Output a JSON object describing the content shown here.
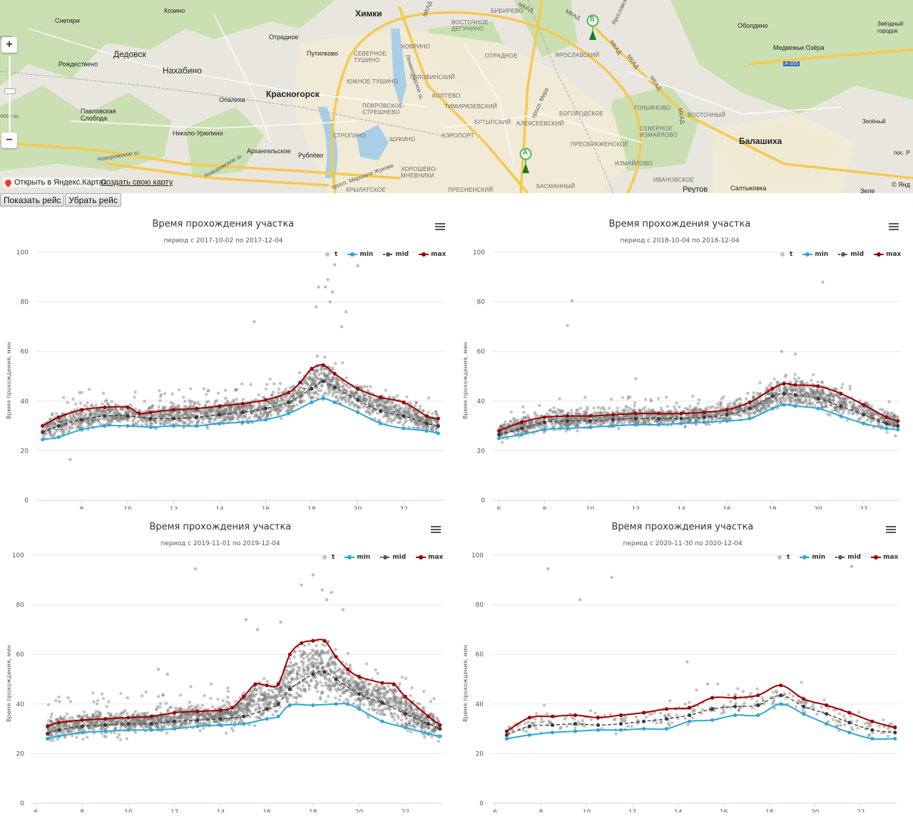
{
  "map": {
    "labels": [
      {
        "t": "Химки",
        "c": "big"
      },
      {
        "t": "Дедовск",
        "c": "city"
      },
      {
        "t": "Нахабино",
        "c": "city"
      },
      {
        "t": "Красногорск",
        "c": "big"
      },
      {
        "t": "Балашиха",
        "c": "big"
      },
      {
        "t": "Реутов",
        "c": "city"
      },
      {
        "t": "Снегири",
        "c": "city"
      },
      {
        "t": "Козино",
        "c": "city"
      },
      {
        "t": "Отрадное",
        "c": "city"
      },
      {
        "t": "Путилково",
        "c": "city"
      },
      {
        "t": "Рождествено",
        "c": "city"
      },
      {
        "t": "Опалиха",
        "c": "city"
      },
      {
        "t": "Павловская Слобода",
        "c": "city"
      },
      {
        "t": "Николо-Урюпино",
        "c": "city"
      },
      {
        "t": "Архангельское",
        "c": "city"
      },
      {
        "t": "Рублёво",
        "c": "city"
      },
      {
        "t": "Оболдино",
        "c": "city"
      },
      {
        "t": "Звёздный городок",
        "c": "city"
      },
      {
        "t": "Медвежьи Озёра",
        "c": "city"
      },
      {
        "t": "Зелёный",
        "c": "city"
      },
      {
        "t": "Салтыковка",
        "c": "city"
      },
      {
        "t": "пос. Р",
        "c": "city"
      },
      {
        "t": "Зеле",
        "c": "city"
      },
      {
        "t": "Бибирево",
        "c": "dist"
      },
      {
        "t": "Восточное Дегунино",
        "c": "dist"
      },
      {
        "t": "Ховрино",
        "c": "dist"
      },
      {
        "t": "Северное Тушино",
        "c": "dist"
      },
      {
        "t": "Южное Тушино",
        "c": "dist"
      },
      {
        "t": "Головинский",
        "c": "dist"
      },
      {
        "t": "Коптево",
        "c": "dist"
      },
      {
        "t": "Отрадное",
        "c": "dist"
      },
      {
        "t": "Ярославский",
        "c": "dist"
      },
      {
        "t": "Тимирязевский",
        "c": "dist"
      },
      {
        "t": "Бутырский",
        "c": "dist"
      },
      {
        "t": "Алексеевский",
        "c": "dist"
      },
      {
        "t": "Богородское",
        "c": "dist"
      },
      {
        "t": "Гольяново",
        "c": "dist"
      },
      {
        "t": "Восточный",
        "c": "dist"
      },
      {
        "t": "Покровское-Стрешнево",
        "c": "dist"
      },
      {
        "t": "Строгино",
        "c": "dist"
      },
      {
        "t": "Аэропорт",
        "c": "dist"
      },
      {
        "t": "Щукино",
        "c": "dist"
      },
      {
        "t": "Преображенское",
        "c": "dist"
      },
      {
        "t": "Северное Измайлово",
        "c": "dist"
      },
      {
        "t": "Измайлово",
        "c": "dist"
      },
      {
        "t": "Хорошёво-Мнёвники",
        "c": "dist"
      },
      {
        "t": "Крылатское",
        "c": "dist"
      },
      {
        "t": "Пресненский",
        "c": "dist"
      },
      {
        "t": "Басманный",
        "c": "dist"
      },
      {
        "t": "Ивановское",
        "c": "dist"
      },
      {
        "t": "МКАД",
        "c": "road"
      },
      {
        "t": "МКАД",
        "c": "road"
      },
      {
        "t": "МКАД",
        "c": "road"
      },
      {
        "t": "МКАД",
        "c": "road"
      },
      {
        "t": "МКАД",
        "c": "road"
      },
      {
        "t": "МКАД",
        "c": "road"
      },
      {
        "t": "МКАД",
        "c": "road"
      },
      {
        "t": "А-103",
        "c": "road"
      },
      {
        "t": "Новорижское ш.",
        "c": "road"
      },
      {
        "t": "Ленинградское ш.",
        "c": "road"
      },
      {
        "t": "просп. Мира",
        "c": "road"
      },
      {
        "t": "просп. Маршала Жукова",
        "c": "road"
      },
      {
        "t": "Ярославское",
        "c": "road"
      },
      {
        "t": "Новорижское ш.",
        "c": "road"
      },
      {
        "t": "ское",
        "c": "road"
      },
      {
        "t": "ское ш.",
        "c": "road"
      }
    ],
    "marker_a": "A",
    "marker_b": "B",
    "open_link": "Открыть в Яндекс.Картах",
    "create_link": "Создать свою карту",
    "copyright": "© Янд",
    "zoom_in": "+",
    "zoom_out": "−"
  },
  "buttons": {
    "show": "Показать рейс",
    "hide": "Убрать рейс"
  },
  "colors": {
    "min": "#2ea8d3",
    "mid": "#555555",
    "max": "#9b0000",
    "t": "#999999"
  },
  "chart_data": [
    {
      "type": "scatter",
      "title": "Время прохождения участка",
      "subtitle": "период с 2017-10-02 по 2017-12-04",
      "ylabel": "Время прохождения, мин",
      "ylim": [
        0,
        100
      ],
      "yticks": [
        0,
        20,
        40,
        60,
        80,
        100
      ],
      "xlim": [
        6,
        23.8
      ],
      "xticks": [
        8,
        10,
        12,
        14,
        16,
        18,
        20,
        22
      ],
      "legend": [
        "t",
        "min",
        "mid",
        "max"
      ],
      "series": [
        {
          "name": "min",
          "x": [
            6.3,
            7,
            8,
            9,
            10,
            11,
            12,
            13,
            14,
            15,
            16,
            17,
            18,
            18.5,
            19,
            20,
            21,
            22,
            23,
            23.5
          ],
          "values": [
            24.5,
            25.5,
            28.5,
            30,
            30,
            29.5,
            30,
            30,
            31,
            31.5,
            32.5,
            35,
            39.5,
            41,
            39.5,
            35.5,
            31,
            29,
            28,
            27
          ]
        },
        {
          "name": "max",
          "x": [
            6.3,
            7,
            8,
            9,
            10,
            10.5,
            11,
            12,
            13,
            14,
            15,
            16,
            17,
            17.5,
            18,
            18.5,
            19,
            20,
            21,
            22,
            23,
            23.5
          ],
          "values": [
            30,
            33.5,
            36.5,
            37.5,
            37.5,
            35,
            35.5,
            36.5,
            37,
            38,
            39,
            40.5,
            43.5,
            47.5,
            53,
            54.5,
            51,
            45,
            41.5,
            39.5,
            34,
            33
          ]
        },
        {
          "name": "mid",
          "x": [
            6.3,
            7,
            8,
            9,
            10,
            11,
            12,
            13,
            14,
            15,
            16,
            17,
            18,
            18.5,
            19,
            20,
            21,
            22,
            23,
            23.5
          ],
          "values": [
            27.5,
            30,
            32.5,
            34,
            34,
            33,
            33,
            33.5,
            34.5,
            35.5,
            37,
            39.5,
            45,
            48,
            45.5,
            40.5,
            36,
            34,
            31,
            30
          ]
        }
      ],
      "t_params": {
        "count": 1900,
        "spread": 4.2,
        "outliers": [
          [
            18.3,
            86
          ],
          [
            18.6,
            86
          ],
          [
            18.9,
            84
          ],
          [
            19,
            95
          ],
          [
            18.7,
            89
          ],
          [
            15.5,
            72
          ],
          [
            19.5,
            76
          ],
          [
            20,
            94.5
          ],
          [
            7.5,
            16.5
          ],
          [
            18.2,
            78
          ],
          [
            18.8,
            80
          ],
          [
            19.3,
            70
          ]
        ]
      }
    },
    {
      "type": "scatter",
      "title": "Время прохождения участка",
      "subtitle": "период с 2018-10-04 по 2018-12-04",
      "ylabel": "Время прохождения, мин",
      "ylim": [
        0,
        100
      ],
      "yticks": [
        0,
        20,
        40,
        60,
        80,
        100
      ],
      "xlim": [
        6,
        23.6
      ],
      "xticks": [
        6,
        8,
        10,
        12,
        14,
        16,
        18,
        20,
        22
      ],
      "legend": [
        "t",
        "min",
        "mid",
        "max"
      ],
      "series": [
        {
          "name": "min",
          "x": [
            6,
            7,
            8,
            9,
            10,
            11,
            12,
            13,
            14,
            15,
            16,
            17,
            18,
            18.5,
            19,
            20,
            21,
            22,
            23,
            23.5
          ],
          "values": [
            25,
            26.5,
            28.5,
            29,
            29.5,
            30,
            30.5,
            30.5,
            31,
            31.5,
            32,
            33,
            37,
            38.5,
            38,
            37,
            34,
            31,
            29,
            28.5
          ]
        },
        {
          "name": "max",
          "x": [
            6,
            7,
            8,
            9,
            10,
            11,
            12,
            13,
            14,
            15,
            16,
            17,
            18,
            18.5,
            19,
            20,
            21,
            22,
            23,
            23.5
          ],
          "values": [
            28,
            31.5,
            33.5,
            34,
            34,
            34.5,
            35,
            35,
            35,
            35.5,
            36.5,
            39.5,
            45,
            47,
            46.5,
            46,
            43,
            38.5,
            33.5,
            32
          ]
        },
        {
          "name": "mid",
          "x": [
            6,
            7,
            8,
            9,
            10,
            11,
            12,
            13,
            14,
            15,
            16,
            17,
            18,
            18.5,
            19,
            20,
            21,
            22,
            23,
            23.5
          ],
          "values": [
            26.5,
            29,
            31.5,
            32,
            32,
            32.5,
            33,
            33,
            33,
            33.5,
            34.5,
            37,
            42,
            43,
            42.5,
            41,
            38,
            34.5,
            31,
            30
          ]
        }
      ],
      "t_params": {
        "count": 1800,
        "spread": 3.4,
        "outliers": [
          [
            9.2,
            80.5
          ],
          [
            9.0,
            70.5
          ],
          [
            20.2,
            88
          ],
          [
            12,
            49
          ],
          [
            18.4,
            60
          ],
          [
            19,
            59
          ],
          [
            23.4,
            26
          ]
        ]
      }
    },
    {
      "type": "scatter",
      "title": "Время прохождения участка",
      "subtitle": "период с 2019-11-01 по 2019-12-04",
      "ylabel": "Время прохождения, мин",
      "ylim": [
        0,
        100
      ],
      "yticks": [
        0,
        20,
        40,
        60,
        80,
        100
      ],
      "xlim": [
        6,
        23.6
      ],
      "xticks": [
        6,
        8,
        10,
        12,
        14,
        16,
        18,
        20,
        22
      ],
      "legend": [
        "t",
        "min",
        "mid",
        "max"
      ],
      "series": [
        {
          "name": "min",
          "x": [
            6.5,
            7,
            8,
            9,
            10,
            11,
            12,
            13,
            14,
            15,
            16,
            16.5,
            17,
            18,
            19,
            19.5,
            20,
            21,
            22,
            23,
            23.5
          ],
          "values": [
            26,
            27,
            28.5,
            29,
            29.5,
            29.5,
            30,
            31,
            31.5,
            32,
            34,
            35,
            39.5,
            39.5,
            40,
            40,
            38,
            33,
            30.5,
            28,
            27
          ]
        },
        {
          "name": "max",
          "x": [
            6.5,
            7,
            8,
            9,
            10,
            11,
            12,
            13,
            14,
            14.5,
            15,
            15.5,
            16,
            16.5,
            17,
            17.5,
            18,
            18.5,
            19,
            19.5,
            20,
            21,
            21.5,
            22,
            23,
            23.5
          ],
          "values": [
            31,
            32.5,
            33.5,
            34,
            34.5,
            35,
            36.5,
            37,
            37.5,
            38.5,
            43,
            48,
            47.5,
            48,
            60,
            64.5,
            65.5,
            65.5,
            59,
            54,
            51,
            48.5,
            48,
            43,
            35,
            31.5
          ]
        },
        {
          "name": "mid",
          "x": [
            6.5,
            7,
            8,
            9,
            10,
            11,
            12,
            13,
            14,
            15,
            16,
            16.5,
            17,
            18,
            18.5,
            19,
            20,
            21,
            22,
            23,
            23.5
          ],
          "values": [
            28,
            29.5,
            31,
            31.5,
            32,
            32,
            33,
            33.5,
            34,
            35,
            38,
            40,
            46,
            52,
            53,
            50,
            44,
            40.5,
            36,
            32,
            30
          ]
        }
      ],
      "t_params": {
        "count": 2100,
        "spread": 5.2,
        "outliers": [
          [
            12.9,
            94.5
          ],
          [
            18,
            92
          ],
          [
            17.5,
            88
          ],
          [
            18.4,
            86
          ],
          [
            18.8,
            85
          ],
          [
            15.1,
            74
          ],
          [
            15.6,
            70
          ],
          [
            11.3,
            54
          ],
          [
            11.7,
            52
          ],
          [
            16.6,
            73
          ],
          [
            19.3,
            78
          ],
          [
            18.6,
            82
          ]
        ]
      }
    },
    {
      "type": "scatter",
      "title": "Время прохождения участка",
      "subtitle": "период с 2020-11-30 по 2020-12-04",
      "ylabel": "Время прохождения, мин",
      "ylim": [
        0,
        100
      ],
      "yticks": [
        0,
        20,
        40,
        60,
        80,
        100
      ],
      "xlim": [
        6,
        23.6
      ],
      "xticks": [
        6,
        8,
        10,
        12,
        14,
        16,
        18,
        20,
        22
      ],
      "legend": [
        "t",
        "min",
        "mid",
        "max"
      ],
      "series": [
        {
          "name": "min",
          "x": [
            6.5,
            7.5,
            8.5,
            9.5,
            10.5,
            11.5,
            12.5,
            13.5,
            14.5,
            15.5,
            16.5,
            17.5,
            18.5,
            19.5,
            20.5,
            21.5,
            22.5,
            23.5
          ],
          "values": [
            26,
            27.5,
            28.5,
            29,
            29.5,
            29.5,
            30,
            30,
            33,
            33.5,
            35.5,
            35.5,
            40,
            36,
            32,
            28.5,
            26,
            26
          ]
        },
        {
          "name": "max",
          "x": [
            6.5,
            7.5,
            8.5,
            9.5,
            10.5,
            11.5,
            12.5,
            13.5,
            14.5,
            15.5,
            16.5,
            17.5,
            18.5,
            19.5,
            20.5,
            21.5,
            22.5,
            23.5
          ],
          "values": [
            29,
            34.5,
            35,
            35.5,
            34.5,
            35.5,
            36.5,
            38,
            38.5,
            42.5,
            42.5,
            43.5,
            47.5,
            42,
            39.5,
            36.5,
            33,
            30.5
          ]
        },
        {
          "name": "mid",
          "x": [
            6.5,
            7.5,
            8.5,
            9.5,
            10.5,
            11.5,
            12.5,
            13.5,
            14.5,
            15.5,
            16.5,
            17.5,
            18.5,
            19.5,
            20.5,
            21.5,
            22.5,
            23.5
          ],
          "values": [
            27.5,
            31,
            31.5,
            32,
            31.5,
            32,
            33,
            34,
            35.5,
            38,
            39,
            39.5,
            43.5,
            39,
            36,
            32.5,
            29.5,
            28.5
          ]
        }
      ],
      "t_params": {
        "count": 260,
        "spread": 3.6,
        "outliers": [
          [
            8.3,
            94.5
          ],
          [
            9.7,
            82
          ],
          [
            11.1,
            91
          ],
          [
            21.6,
            95.5
          ],
          [
            15.3,
            48
          ],
          [
            14.4,
            57
          ]
        ]
      }
    }
  ]
}
